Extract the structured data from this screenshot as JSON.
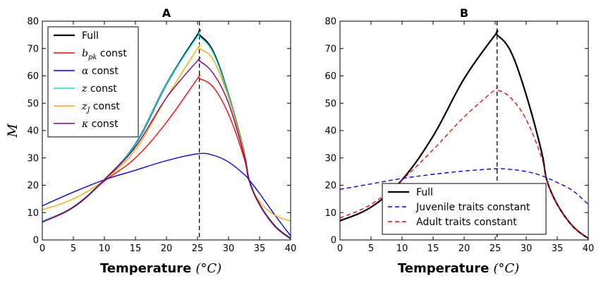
{
  "chart_data": [
    {
      "panel": "A",
      "type": "line",
      "title": "A",
      "xlabel": "Temperature",
      "xlabel_unit": "(°C)",
      "ylabel": "M",
      "xlim": [
        0,
        40
      ],
      "ylim": [
        0,
        80
      ],
      "xticks": [
        0,
        5,
        10,
        15,
        20,
        25,
        30,
        35,
        40
      ],
      "yticks": [
        0,
        10,
        20,
        30,
        40,
        50,
        60,
        70,
        80
      ],
      "legend_position": "top-left",
      "vline_x": 25.3,
      "series": [
        {
          "name": "Full",
          "legend_math": "",
          "legend_text": "Full",
          "color": "#000000",
          "width": 2.2,
          "x": [
            0,
            5,
            10,
            15,
            20,
            25,
            25.3,
            27.5,
            30,
            32.5,
            33.3,
            35,
            37.5,
            40
          ],
          "y": [
            6.7,
            12,
            22,
            35,
            57,
            75,
            75,
            69,
            53,
            32,
            22,
            13,
            5,
            0.5
          ]
        },
        {
          "name": "b_pk const",
          "legend_math": "b",
          "legend_sub": "pk",
          "legend_text": " const",
          "color": "#ff0000",
          "width": 1.4,
          "x": [
            0,
            5,
            10,
            15,
            20,
            25,
            25.3,
            27.5,
            30,
            32.5,
            33.3,
            35,
            37.5,
            40
          ],
          "y": [
            6.5,
            12,
            21.5,
            30,
            43,
            59,
            59,
            56,
            46,
            30,
            22,
            13,
            5,
            0.5
          ]
        },
        {
          "name": "α const",
          "legend_math": "α",
          "legend_text": "  const",
          "color": "#0000ff",
          "width": 1.4,
          "x": [
            0,
            5,
            10,
            15,
            20,
            25,
            27.5,
            30,
            32.5,
            33.3,
            35,
            37.5,
            40
          ],
          "y": [
            12.5,
            17.5,
            22,
            25.5,
            29,
            31.5,
            31,
            28.5,
            24,
            22,
            17,
            9,
            1.5
          ]
        },
        {
          "name": "z const",
          "legend_math": "z",
          "legend_text": "  const",
          "color": "#00e5e5",
          "width": 1.4,
          "x": [
            0,
            5,
            10,
            15,
            20,
            25,
            25.3,
            27.5,
            30,
            32.5,
            33.3,
            35,
            37.5,
            40
          ],
          "y": [
            6.8,
            12,
            22,
            35,
            57,
            74.5,
            74.5,
            68.5,
            53,
            32,
            22,
            13,
            5,
            0.5
          ]
        },
        {
          "name": "z_J const",
          "legend_math": "z",
          "legend_sub": "J",
          "legend_text": " const",
          "color": "#ffa500",
          "width": 1.4,
          "x": [
            0,
            5,
            10,
            15,
            20,
            25,
            25.3,
            27.5,
            30,
            32.5,
            33.3,
            35,
            37.5,
            40
          ],
          "y": [
            11,
            15,
            22,
            33,
            52,
            70,
            70,
            66,
            52,
            32,
            22,
            14,
            9,
            7
          ]
        },
        {
          "name": "κ const",
          "legend_math": "κ",
          "legend_text": " const",
          "color": "#800080",
          "width": 1.4,
          "x": [
            0,
            5,
            10,
            15,
            20,
            25,
            25.3,
            27.5,
            30,
            32.5,
            33.3,
            35,
            37.5,
            40
          ],
          "y": [
            6.5,
            12,
            22,
            34,
            52,
            65.5,
            65.5,
            61,
            50,
            31,
            22,
            13,
            5,
            0.5
          ]
        }
      ]
    },
    {
      "panel": "B",
      "type": "line",
      "title": "B",
      "xlabel": "Temperature",
      "xlabel_unit": "(°C)",
      "ylabel": "",
      "xlim": [
        0,
        40
      ],
      "ylim": [
        0,
        80
      ],
      "xticks": [
        0,
        5,
        10,
        15,
        20,
        25,
        30,
        35,
        40
      ],
      "yticks": [
        0,
        10,
        20,
        30,
        40,
        50,
        60,
        70,
        80
      ],
      "legend_position": "lower-center",
      "vline_x": 25.3,
      "series": [
        {
          "name": "Full",
          "legend_text": "Full",
          "color": "#000000",
          "width": 2.2,
          "dash": "",
          "x": [
            0,
            5,
            10,
            15,
            20,
            25,
            25.3,
            27.5,
            30,
            32.5,
            33.3,
            35,
            37.5,
            40
          ],
          "y": [
            7,
            12,
            22,
            38,
            59,
            75,
            75,
            69,
            53,
            32,
            22,
            13,
            5,
            0.5
          ]
        },
        {
          "name": "Juvenile traits constant",
          "legend_text": "Juvenile traits constant",
          "color": "#0000ff",
          "width": 1.4,
          "dash": "6,4",
          "x": [
            0,
            5,
            10,
            15,
            20,
            25,
            27.5,
            30,
            32.5,
            35,
            37.5,
            40
          ],
          "y": [
            18.5,
            20.5,
            22.5,
            24,
            25.2,
            26,
            25.8,
            25,
            23.5,
            21,
            18,
            13
          ]
        },
        {
          "name": "Adult traits constant",
          "legend_text": "Adult traits constant",
          "color": "#ff0000",
          "width": 1.4,
          "dash": "6,4",
          "x": [
            0,
            5,
            10,
            15,
            20,
            25,
            25.3,
            27.5,
            30,
            32.5,
            33.3,
            35,
            37.5,
            40
          ],
          "y": [
            8,
            13,
            22,
            33,
            45,
            55,
            55,
            52,
            44,
            30,
            22,
            13,
            5,
            0.5
          ]
        }
      ]
    }
  ]
}
